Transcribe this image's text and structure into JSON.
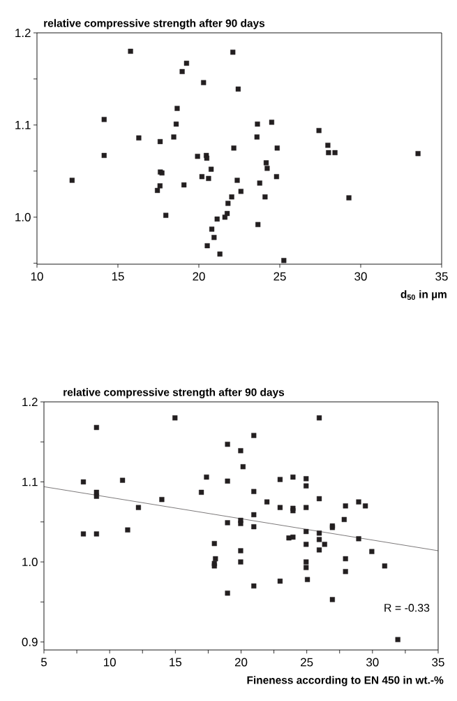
{
  "chart_data": [
    {
      "type": "scatter",
      "ylabel": "relative compressive strength after 90 days",
      "xlabel": "d$_{50}$ in µm",
      "marker": "square",
      "xlim": [
        10,
        35
      ],
      "xticks": [
        10,
        15,
        20,
        25,
        30,
        35
      ],
      "ylim": [
        0.949,
        1.2
      ],
      "yticks": [
        {
          "value": 0.95,
          "label": null
        },
        {
          "value": 1.0,
          "label": "1.0"
        },
        {
          "value": 1.05,
          "label": null
        },
        1.1,
        {
          "value": 1.15,
          "label": null
        },
        1.2
      ],
      "series": [
        {
          "color": "#231f20",
          "x": [
            12.17,
            15.78,
            14.15,
            14.15,
            16.29,
            17.61,
            17.62,
            17.72,
            17.6,
            17.44,
            17.96,
            18.45,
            18.6,
            18.66,
            18.97,
            19.24,
            19.08,
            19.92,
            20.29,
            20.19,
            20.46,
            20.49,
            20.6,
            20.76,
            20.52,
            20.8,
            20.94,
            21.13,
            21.3,
            22.1,
            22.43,
            21.61,
            21.75,
            21.8,
            22.03,
            22.6,
            22.37,
            22.16,
            23.62,
            23.59,
            24.5,
            24.84,
            24.16,
            24.22,
            24.8,
            23.76,
            24.09,
            23.65,
            25.25,
            27.42,
            27.97,
            28.01,
            28.41,
            29.27,
            33.54
          ],
          "values": [
            1.04,
            1.18,
            1.106,
            1.067,
            1.086,
            1.082,
            1.049,
            1.048,
            1.034,
            1.029,
            1.002,
            1.087,
            1.101,
            1.118,
            1.158,
            1.167,
            1.035,
            1.066,
            1.146,
            1.044,
            1.067,
            1.064,
            1.042,
            1.052,
            0.969,
            0.987,
            0.978,
            0.998,
            0.96,
            1.179,
            1.139,
            1.0,
            1.004,
            1.015,
            1.022,
            1.028,
            1.04,
            1.075,
            1.101,
            1.087,
            1.103,
            1.075,
            1.059,
            1.053,
            1.044,
            1.037,
            1.022,
            0.992,
            0.953,
            1.094,
            1.078,
            1.07,
            1.07,
            1.021,
            1.069
          ]
        }
      ]
    },
    {
      "type": "scatter",
      "ylabel": "relative compressive strength after 90 days",
      "xlabel": "Fineness according to EN 450 in wt.-%",
      "marker": "square",
      "xlim": [
        5,
        35
      ],
      "xticks": [
        5,
        {
          "value": 7.5,
          "label": null
        },
        10,
        {
          "value": 12.5,
          "label": null
        },
        15,
        {
          "value": 17.5,
          "label": null
        },
        20,
        {
          "value": 22.5,
          "label": null
        },
        25,
        {
          "value": 27.5,
          "label": null
        },
        30,
        {
          "value": 32.5,
          "label": null
        },
        35
      ],
      "ylim": [
        0.89,
        1.2
      ],
      "yticks": [
        0.9,
        {
          "value": 0.95,
          "label": null
        },
        {
          "value": 1.0,
          "label": "1.0"
        },
        {
          "value": 1.05,
          "label": null
        },
        1.1,
        {
          "value": 1.15,
          "label": null
        },
        1.2
      ],
      "annotations": [
        "R = -0.33"
      ],
      "series": [
        {
          "color": "#231f20",
          "x": [
            8.0,
            8.0,
            9.0,
            9.0,
            9.0,
            9.0,
            10.98,
            11.37,
            12.19,
            13.97,
            14.97,
            16.98,
            17.37,
            17.97,
            18.05,
            17.97,
            17.97,
            18.97,
            18.97,
            18.97,
            18.97,
            19.97,
            19.97,
            19.97,
            19.97,
            19.97,
            20.15,
            20.97,
            20.97,
            20.97,
            20.97,
            20.97,
            21.97,
            22.97,
            22.97,
            22.97,
            23.95,
            23.95,
            23.95,
            23.64,
            23.95,
            24.95,
            24.95,
            24.95,
            24.95,
            24.95,
            24.95,
            24.95,
            25.05,
            25.95,
            25.95,
            25.95,
            25.95,
            26.36,
            25.95,
            26.95,
            26.95,
            26.95,
            27.85,
            27.95,
            27.95,
            27.95,
            28.95,
            28.95,
            29.46,
            29.95,
            30.93,
            31.93
          ],
          "values": [
            1.1,
            1.035,
            1.168,
            1.087,
            1.082,
            1.035,
            1.102,
            1.04,
            1.068,
            1.078,
            1.18,
            1.087,
            1.106,
            1.023,
            1.004,
            0.998,
            0.995,
            1.147,
            1.101,
            1.049,
            0.961,
            1.139,
            1.052,
            1.048,
            1.014,
            1.0,
            1.119,
            1.158,
            1.088,
            1.059,
            1.044,
            0.97,
            1.075,
            1.103,
            1.068,
            0.976,
            1.106,
            1.067,
            1.064,
            1.03,
            1.031,
            1.104,
            1.095,
            1.068,
            1.038,
            1.022,
            1.0,
            0.993,
            0.978,
            1.18,
            1.079,
            1.036,
            1.028,
            1.022,
            1.015,
            1.045,
            1.043,
            0.953,
            1.053,
            1.07,
            1.004,
            0.988,
            1.075,
            1.029,
            1.07,
            1.013,
            0.995,
            0.903
          ]
        },
        {
          "type": "line",
          "color": "#231f20",
          "marker": "none",
          "x": [
            5,
            35
          ],
          "values": [
            1.094,
            1.014
          ]
        }
      ]
    }
  ]
}
